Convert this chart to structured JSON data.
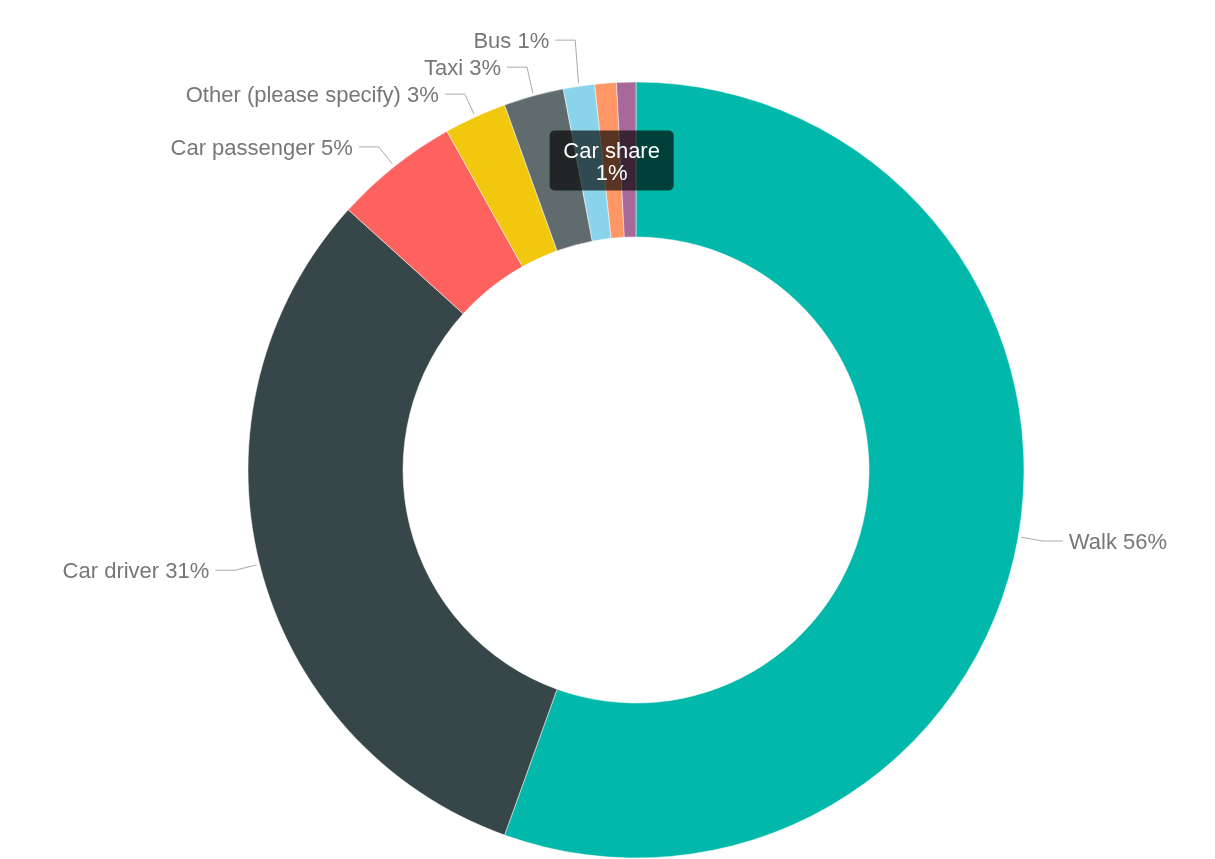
{
  "chart_data": {
    "type": "donut",
    "categories": [
      "Walk",
      "Car driver",
      "Car passenger",
      "Other (please specify)",
      "Taxi",
      "Bus",
      "Car share",
      null
    ],
    "values": [
      55.5,
      31.2,
      5.2,
      2.6,
      2.5,
      1.3,
      0.9,
      0.8
    ],
    "value_labels": [
      "56%",
      "31%",
      "5%",
      "3%",
      "3%",
      "1%",
      "1%",
      null
    ],
    "colors": [
      "#01b8aa",
      "#374649",
      "#fd625e",
      "#f2c80f",
      "#5f6b6d",
      "#8ad4eb",
      "#fe9666",
      "#a66999"
    ]
  }
}
